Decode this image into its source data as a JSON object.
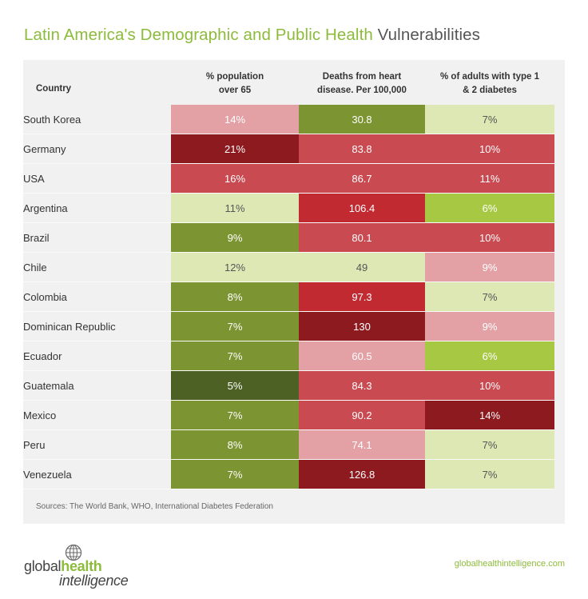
{
  "title": {
    "accent": "Latin America's Demographic and Public Health",
    "rest": " Vulnerabilities"
  },
  "headers": {
    "country": "Country",
    "col1_line1": "% population",
    "col1_line2": "over 65",
    "col2_line1": "Deaths from heart",
    "col2_line2": "disease. Per 100,000",
    "col3_line1": "% of adults with type 1",
    "col3_line2": "& 2 diabetes"
  },
  "palette": {
    "light_green": "#dde8b4",
    "lime": "#a6c843",
    "olive": "#7c9431",
    "dark_olive": "#4d6125",
    "pink": "#e3a1a6",
    "red": "#c94a50",
    "bright_red": "#c12a31",
    "dark_red": "#8c1a1f"
  },
  "chart_data": {
    "type": "table",
    "title": "Latin America's Demographic and Public Health Vulnerabilities",
    "columns": [
      "Country",
      "% population over 65",
      "Deaths from heart disease. Per 100,000",
      "% of adults with type 1 & 2 diabetes"
    ],
    "rows": [
      {
        "country": "South Korea",
        "c1": "14%",
        "c1_color": "pink",
        "c2": "30.8",
        "c2_color": "olive",
        "c3": "7%",
        "c3_color": "light_green"
      },
      {
        "country": "Germany",
        "c1": "21%",
        "c1_color": "dark_red",
        "c2": "83.8",
        "c2_color": "red",
        "c3": "10%",
        "c3_color": "red"
      },
      {
        "country": "USA",
        "c1": "16%",
        "c1_color": "red",
        "c2": "86.7",
        "c2_color": "red",
        "c3": "11%",
        "c3_color": "red"
      },
      {
        "country": "Argentina",
        "c1": "11%",
        "c1_color": "light_green",
        "c2": "106.4",
        "c2_color": "bright_red",
        "c3": "6%",
        "c3_color": "lime"
      },
      {
        "country": "Brazil",
        "c1": "9%",
        "c1_color": "olive",
        "c2": "80.1",
        "c2_color": "red",
        "c3": "10%",
        "c3_color": "red"
      },
      {
        "country": "Chile",
        "c1": "12%",
        "c1_color": "light_green",
        "c2": "49",
        "c2_color": "light_green",
        "c3": "9%",
        "c3_color": "pink"
      },
      {
        "country": "Colombia",
        "c1": "8%",
        "c1_color": "olive",
        "c2": "97.3",
        "c2_color": "bright_red",
        "c3": "7%",
        "c3_color": "light_green"
      },
      {
        "country": "Dominican Republic",
        "c1": "7%",
        "c1_color": "olive",
        "c2": "130",
        "c2_color": "dark_red",
        "c3": "9%",
        "c3_color": "pink"
      },
      {
        "country": "Ecuador",
        "c1": "7%",
        "c1_color": "olive",
        "c2": "60.5",
        "c2_color": "pink",
        "c3": "6%",
        "c3_color": "lime"
      },
      {
        "country": "Guatemala",
        "c1": "5%",
        "c1_color": "dark_olive",
        "c2": "84.3",
        "c2_color": "red",
        "c3": "10%",
        "c3_color": "red"
      },
      {
        "country": "Mexico",
        "c1": "7%",
        "c1_color": "olive",
        "c2": "90.2",
        "c2_color": "red",
        "c3": "14%",
        "c3_color": "dark_red"
      },
      {
        "country": "Peru",
        "c1": "8%",
        "c1_color": "olive",
        "c2": "74.1",
        "c2_color": "pink",
        "c3": "7%",
        "c3_color": "light_green"
      },
      {
        "country": "Venezuela",
        "c1": "7%",
        "c1_color": "olive",
        "c2": "126.8",
        "c2_color": "dark_red",
        "c3": "7%",
        "c3_color": "light_green"
      }
    ]
  },
  "sources": "Sources: The World Bank, WHO, International Diabetes Federation",
  "logo": {
    "line1_a": "global",
    "line1_b": "health",
    "line2": "intelligence"
  },
  "website": "globalhealthintelligence.com"
}
